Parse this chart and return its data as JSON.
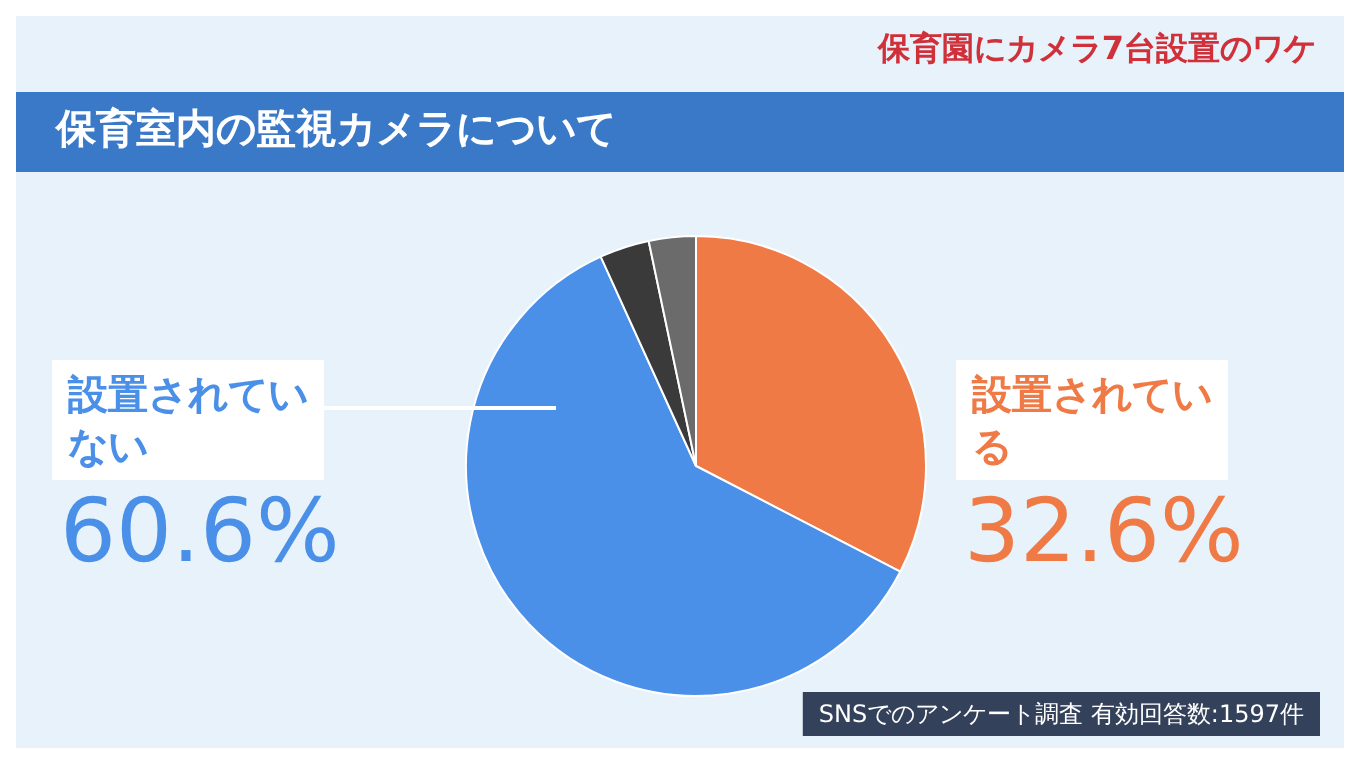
{
  "chart_data": {
    "type": "pie",
    "title": "保育室内の監視カメラについて",
    "subtitle": "保育園にカメラ7台設置のワケ",
    "categories": [
      "設置されている",
      "設置されていない",
      null,
      null
    ],
    "values": [
      32.6,
      60.6,
      3.5,
      3.3
    ],
    "colors": [
      "#f07a45",
      "#4a8fe8",
      "#3a3a3a",
      "#6b6b6b"
    ],
    "value_labels": [
      "32.6%",
      "60.6%",
      null,
      null
    ],
    "legend": false,
    "annotations": [
      "SNSでのアンケート調査 有効回答数:1597件"
    ]
  }
}
